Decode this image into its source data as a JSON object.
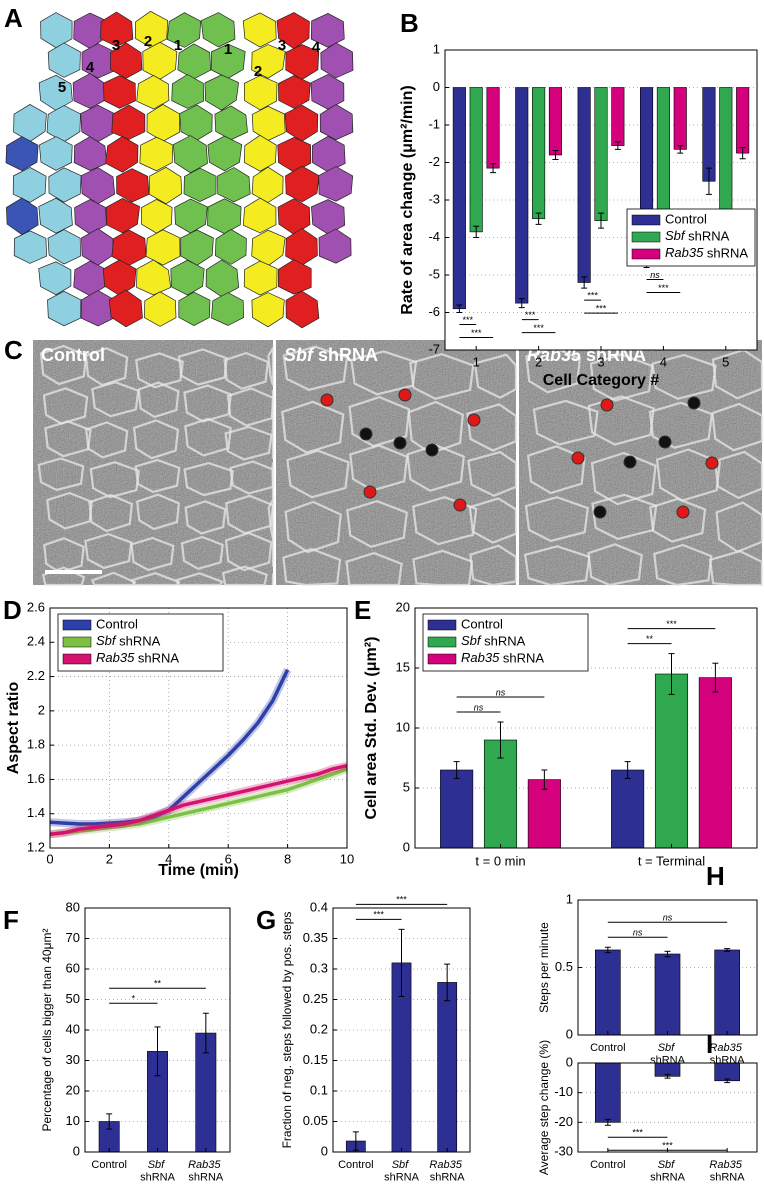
{
  "diagram_a": {
    "label": "A",
    "categories": [
      "5",
      "4",
      "3",
      "2",
      "1",
      "1",
      "2",
      "3",
      "4"
    ]
  },
  "micrographs_c": {
    "label": "C",
    "panels": [
      "Control",
      "Sbf shRNA",
      "Rab35 shRNA"
    ]
  },
  "chart_data": [
    {
      "panel": "B",
      "type": "bar",
      "categories": [
        1,
        2,
        3,
        4,
        5
      ],
      "series": [
        {
          "name": "Control",
          "color": "#2d2f92",
          "values": [
            -5.9,
            -5.75,
            -5.2,
            -4.5,
            -2.5
          ],
          "errors": [
            0.1,
            0.12,
            0.15,
            0.3,
            0.35
          ]
        },
        {
          "name": "Sbf shRNA",
          "color": "#2fa84f",
          "values": [
            -3.85,
            -3.5,
            -3.55,
            -4.35,
            -3.45
          ],
          "errors": [
            0.15,
            0.15,
            0.2,
            0.2,
            0.2
          ]
        },
        {
          "name": "Rab35 shRNA",
          "color": "#d4007c",
          "values": [
            -2.15,
            -1.8,
            -1.55,
            -1.65,
            -1.75
          ],
          "errors": [
            0.12,
            0.12,
            0.1,
            0.1,
            0.15
          ]
        }
      ],
      "ylim": [
        -7,
        1
      ],
      "yticks": [
        -7,
        -6,
        -5,
        -4,
        -3,
        -2,
        -1,
        0,
        1
      ],
      "xlabel": "Cell Category #",
      "ylabel": "Rate of area change (μm²/min)",
      "grid": true,
      "legend": "lower right",
      "significance": [
        {
          "text": "***",
          "category": 1,
          "between": [
            "Control",
            "Sbf shRNA"
          ]
        },
        {
          "text": "***",
          "category": 1,
          "between": [
            "Control",
            "Rab35 shRNA"
          ]
        },
        {
          "text": "***",
          "category": 2,
          "between": [
            "Control",
            "Sbf shRNA"
          ]
        },
        {
          "text": "***",
          "category": 2,
          "between": [
            "Control",
            "Rab35 shRNA"
          ]
        },
        {
          "text": "***",
          "category": 3,
          "between": [
            "Control",
            "Sbf shRNA"
          ]
        },
        {
          "text": "***",
          "category": 3,
          "between": [
            "Control",
            "Rab35 shRNA"
          ]
        },
        {
          "text": "ns",
          "category": 4,
          "between": [
            "Control",
            "Sbf shRNA"
          ]
        },
        {
          "text": "***",
          "category": 4,
          "between": [
            "Control",
            "Rab35 shRNA"
          ]
        },
        {
          "text": "***",
          "category": 5,
          "between": [
            "Control",
            "Sbf shRNA"
          ]
        },
        {
          "text": "***",
          "category": 5,
          "between": [
            "Control",
            "Rab35 shRNA"
          ]
        }
      ]
    },
    {
      "panel": "D",
      "type": "line",
      "x": [
        0,
        0.5,
        1,
        1.5,
        2,
        2.5,
        3,
        3.5,
        4,
        4.5,
        5,
        5.5,
        6,
        6.5,
        7,
        7.5,
        8,
        8.5,
        9,
        9.5,
        10
      ],
      "series": [
        {
          "name": "Control",
          "color": "#2d3fa8",
          "values": [
            1.35,
            1.345,
            1.34,
            1.34,
            1.345,
            1.35,
            1.36,
            1.38,
            1.42,
            1.5,
            1.58,
            1.66,
            1.74,
            1.83,
            1.93,
            2.06,
            2.24,
            null,
            null,
            null,
            null
          ]
        },
        {
          "name": "Sbf shRNA",
          "color": "#7cc142",
          "values": [
            1.28,
            1.29,
            1.3,
            1.31,
            1.32,
            1.33,
            1.34,
            1.36,
            1.38,
            1.4,
            1.42,
            1.44,
            1.46,
            1.48,
            1.5,
            1.52,
            1.54,
            1.57,
            1.6,
            1.63,
            1.66
          ]
        },
        {
          "name": "Rab35 shRNA",
          "color": "#d4136f",
          "values": [
            1.28,
            1.29,
            1.31,
            1.32,
            1.33,
            1.34,
            1.36,
            1.39,
            1.42,
            1.45,
            1.47,
            1.49,
            1.51,
            1.53,
            1.55,
            1.57,
            1.59,
            1.61,
            1.63,
            1.66,
            1.68
          ]
        }
      ],
      "xlim": [
        0,
        10
      ],
      "xticks": [
        0,
        2,
        4,
        6,
        8,
        10
      ],
      "ylim": [
        1.2,
        2.6
      ],
      "yticks": [
        1.2,
        1.4,
        1.6,
        1.8,
        2,
        2.2,
        2.4,
        2.6
      ],
      "xlabel": "Time (min)",
      "ylabel": "Aspect ratio",
      "grid": true,
      "legend": "upper left"
    },
    {
      "panel": "E",
      "type": "bar",
      "categories": [
        "t = 0 min",
        "t = Terminal"
      ],
      "series": [
        {
          "name": "Control",
          "color": "#2d2f92",
          "values": [
            6.5,
            6.5
          ],
          "errors": [
            0.7,
            0.7
          ]
        },
        {
          "name": "Sbf shRNA",
          "color": "#2fa84f",
          "values": [
            9,
            14.5
          ],
          "errors": [
            1.5,
            1.7
          ]
        },
        {
          "name": "Rab35 shRNA",
          "color": "#d4007c",
          "values": [
            5.7,
            14.2
          ],
          "errors": [
            0.8,
            1.2
          ]
        }
      ],
      "ylim": [
        0,
        20
      ],
      "yticks": [
        0,
        5,
        10,
        15,
        20
      ],
      "ylabel": "Cell area Std. Dev. (μm²)",
      "grid": true,
      "legend": "upper left",
      "significance": [
        {
          "text": "ns",
          "category": "t = 0 min",
          "between": [
            "Control",
            "Sbf shRNA"
          ]
        },
        {
          "text": "ns",
          "category": "t = 0 min",
          "between": [
            "Control",
            "Rab35 shRNA"
          ]
        },
        {
          "text": "**",
          "category": "t = Terminal",
          "between": [
            "Control",
            "Sbf shRNA"
          ]
        },
        {
          "text": "***",
          "category": "t = Terminal",
          "between": [
            "Control",
            "Rab35 shRNA"
          ]
        }
      ]
    },
    {
      "panel": "F",
      "type": "bar",
      "categories": [
        "Control",
        "Sbf shRNA",
        "Rab35 shRNA"
      ],
      "values": [
        10,
        33,
        39
      ],
      "errors": [
        2.5,
        8,
        6.5
      ],
      "color": "#2d2f92",
      "ylim": [
        0,
        80
      ],
      "yticks": [
        0,
        10,
        20,
        30,
        40,
        50,
        60,
        70,
        80
      ],
      "ylabel": "Percentage of cells bigger than 40μm²",
      "grid": true,
      "significance": [
        {
          "text": "*",
          "between": [
            "Control",
            "Sbf shRNA"
          ]
        },
        {
          "text": "**",
          "between": [
            "Control",
            "Rab35 shRNA"
          ]
        }
      ]
    },
    {
      "panel": "G",
      "type": "bar",
      "categories": [
        "Control",
        "Sbf shRNA",
        "Rab35 shRNA"
      ],
      "values": [
        0.018,
        0.31,
        0.278
      ],
      "errors": [
        0.015,
        0.055,
        0.03
      ],
      "color": "#2d2f92",
      "ylim": [
        0,
        0.4
      ],
      "yticks": [
        0,
        0.05,
        0.1,
        0.15,
        0.2,
        0.25,
        0.3,
        0.35,
        0.4
      ],
      "ylabel": "Fraction of neg. steps followed by pos. steps",
      "grid": true,
      "significance": [
        {
          "text": "***",
          "between": [
            "Control",
            "Sbf shRNA"
          ]
        },
        {
          "text": "***",
          "between": [
            "Control",
            "Rab35 shRNA"
          ]
        }
      ]
    },
    {
      "panel": "H",
      "type": "bar",
      "categories": [
        "Control",
        "Sbf shRNA",
        "Rab35 shRNA"
      ],
      "values": [
        0.63,
        0.6,
        0.63
      ],
      "errors": [
        0.02,
        0.02,
        0.01
      ],
      "color": "#2d2f92",
      "ylim": [
        0,
        1
      ],
      "yticks": [
        0,
        0.5,
        1
      ],
      "ylabel": "Steps per minute",
      "grid": true,
      "significance": [
        {
          "text": "ns",
          "between": [
            "Control",
            "Sbf shRNA"
          ]
        },
        {
          "text": "ns",
          "between": [
            "Control",
            "Rab35 shRNA"
          ]
        }
      ]
    },
    {
      "panel": "I",
      "type": "bar",
      "categories": [
        "Control",
        "Sbf shRNA",
        "Rab35 shRNA"
      ],
      "values": [
        -20,
        -4.5,
        -6
      ],
      "errors": [
        1,
        0.6,
        0.6
      ],
      "color": "#2d2f92",
      "ylim": [
        -30,
        0
      ],
      "yticks": [
        -30,
        -20,
        -10,
        0
      ],
      "ylabel": "Average step change (%)",
      "grid": true,
      "significance": [
        {
          "text": "***",
          "between": [
            "Control",
            "Sbf shRNA"
          ]
        },
        {
          "text": "***",
          "between": [
            "Control",
            "Rab35 shRNA"
          ]
        }
      ]
    }
  ]
}
